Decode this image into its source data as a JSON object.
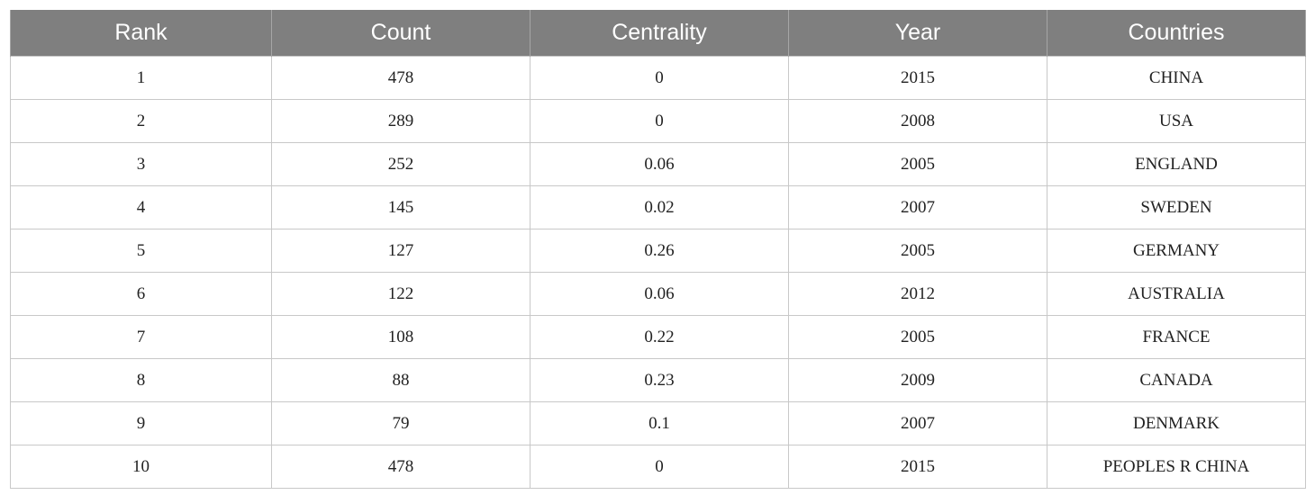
{
  "table": {
    "headers": [
      "Rank",
      "Count",
      "Centrality",
      "Year",
      "Countries"
    ],
    "rows": [
      [
        "1",
        "478",
        "0",
        "2015",
        "CHINA"
      ],
      [
        "2",
        "289",
        "0",
        "2008",
        "USA"
      ],
      [
        "3",
        "252",
        "0.06",
        "2005",
        "ENGLAND"
      ],
      [
        "4",
        "145",
        "0.02",
        "2007",
        "SWEDEN"
      ],
      [
        "5",
        "127",
        "0.26",
        "2005",
        "GERMANY"
      ],
      [
        "6",
        "122",
        "0.06",
        "2012",
        "AUSTRALIA"
      ],
      [
        "7",
        "108",
        "0.22",
        "2005",
        "FRANCE"
      ],
      [
        "8",
        "88",
        "0.23",
        "2009",
        "CANADA"
      ],
      [
        "9",
        "79",
        "0.1",
        "2007",
        "DENMARK"
      ],
      [
        "10",
        "478",
        "0",
        "2015",
        "PEOPLES R CHINA"
      ]
    ]
  },
  "colors": {
    "header_background": "#7f7f7f",
    "header_text": "#ffffff",
    "grid_line": "#c8c8c8"
  }
}
